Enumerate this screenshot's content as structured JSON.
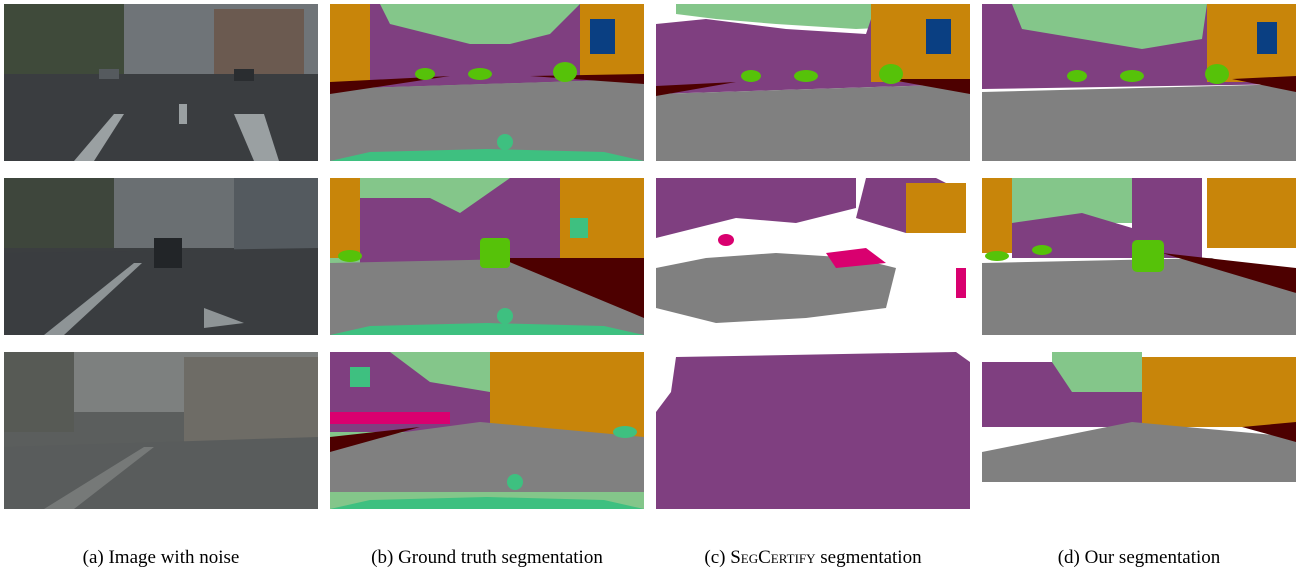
{
  "captions": {
    "a": {
      "prefix": "(a) Image with noise"
    },
    "b": {
      "prefix": "(b) Ground truth segmentation"
    },
    "c": {
      "prefix": "(c) ",
      "method": "SegCertify",
      "suffix": " segmentation"
    },
    "d": {
      "prefix": "(d) Our segmentation"
    }
  },
  "colors": {
    "road": "#808080",
    "sky": "#84c68a",
    "vegetation": "#7f3f80",
    "building": "#c8850a",
    "sidewalk": "#3ec080",
    "ground": "#4d0000",
    "car": "#56c209",
    "sign": "#0a3f82",
    "person": "#d9006f",
    "abstain": "#ffffff"
  }
}
